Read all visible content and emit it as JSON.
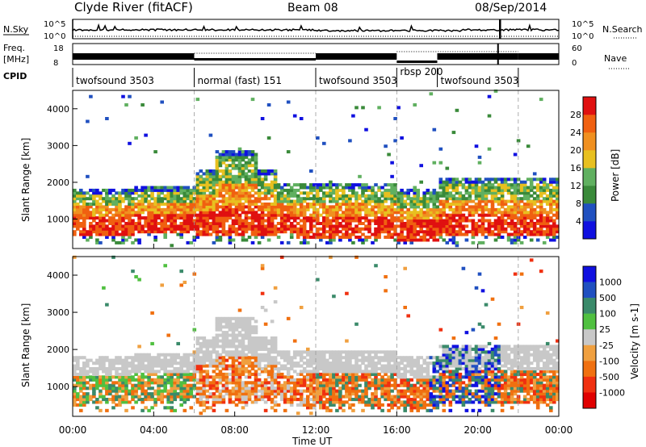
{
  "header": {
    "station": "Clyde River (fitACF)",
    "beam": "Beam 08",
    "date": "08/Sep/2014"
  },
  "nsky_panel": {
    "left_label": "N.Sky",
    "right_label": "N.Search",
    "left_ticks": [
      "10^5",
      "10^0"
    ],
    "right_ticks": [
      "10^5",
      "10^0"
    ]
  },
  "freq_panel": {
    "left_label_1": "Freq.",
    "left_label_2": "[MHz]",
    "right_label": "Nave",
    "left_ticks": [
      "18",
      "8"
    ],
    "right_ticks": [
      "60",
      "0"
    ]
  },
  "cpid": {
    "label": "CPID",
    "segments": [
      {
        "name": "twofsound 3503",
        "start": 0,
        "end": 6
      },
      {
        "name": "normal (fast) 151",
        "start": 6,
        "end": 12
      },
      {
        "name": "twofsound 3503",
        "start": 12,
        "end": 16
      },
      {
        "name": "rbsp 200",
        "start": 16,
        "end": 18
      },
      {
        "name": "twofsound 3503",
        "start": 18,
        "end": 22
      }
    ]
  },
  "time_axis": {
    "label": "Time UT",
    "ticks": [
      "00:00",
      "04:00",
      "08:00",
      "12:00",
      "16:00",
      "20:00",
      "00:00"
    ]
  },
  "colors": {
    "power": [
      "#1010e0",
      "#2050c0",
      "#3a8a3a",
      "#60b060",
      "#e8c020",
      "#f09020",
      "#f06010",
      "#e01010"
    ],
    "velocity": [
      "#1010e0",
      "#2050c0",
      "#3a8a6a",
      "#50c040",
      "#c8c8c8",
      "#f0a040",
      "#f07010",
      "#f03010",
      "#e00000"
    ]
  },
  "chart_data": [
    {
      "type": "heatmap",
      "panel": "power",
      "ylabel": "Slant Range [km]",
      "y_ticks": [
        "1000",
        "2000",
        "3000",
        "4000"
      ],
      "ylim": [
        200,
        4500
      ],
      "xlim": [
        0,
        24
      ],
      "colorbar_label": "Power [dB]",
      "colorbar_ticks": [
        "4",
        "8",
        "12",
        "16",
        "20",
        "24",
        "28"
      ],
      "clim": [
        0,
        30
      ]
    },
    {
      "type": "heatmap",
      "panel": "velocity",
      "ylabel": "Slant Range [km]",
      "y_ticks": [
        "1000",
        "2000",
        "3000",
        "4000"
      ],
      "ylim": [
        200,
        4500
      ],
      "xlim": [
        0,
        24
      ],
      "colorbar_label": "Velocity [m s-1]",
      "colorbar_ticks": [
        "1000",
        "500",
        "100",
        "25",
        "-25",
        "-100",
        "-500",
        "-1000"
      ]
    }
  ]
}
